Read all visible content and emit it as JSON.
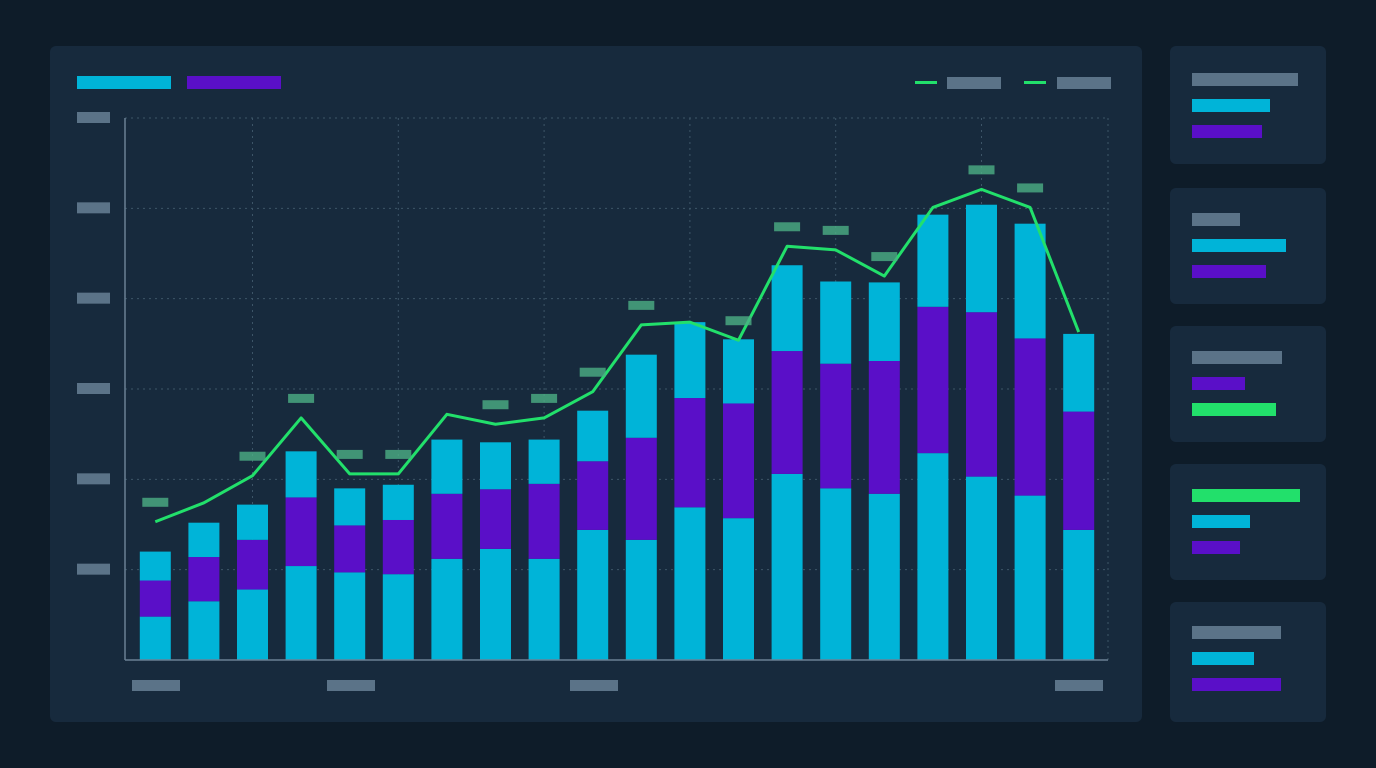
{
  "chart_data": {
    "type": "bar",
    "stacked": true,
    "categories": [
      null,
      null,
      null,
      null,
      null,
      null,
      null,
      null,
      null,
      null,
      null,
      null,
      null,
      null,
      null,
      null,
      null,
      null,
      null,
      null
    ],
    "series": [
      {
        "color": "#00b4d8",
        "values": [
          0.48,
          0.65,
          0.78,
          1.04,
          0.97,
          0.95,
          1.12,
          1.23,
          1.12,
          1.44,
          1.33,
          1.69,
          1.57,
          2.06,
          1.9,
          1.84,
          2.29,
          2.03,
          1.82,
          1.44
        ]
      },
      {
        "color": "#5a0fc8",
        "values": [
          0.4,
          0.49,
          0.55,
          0.76,
          0.52,
          0.6,
          0.72,
          0.66,
          0.83,
          0.76,
          1.13,
          1.21,
          1.27,
          1.36,
          1.38,
          1.47,
          1.62,
          1.82,
          1.74,
          1.31
        ]
      },
      {
        "color": "#00b4d8",
        "values": [
          0.32,
          0.38,
          0.39,
          0.51,
          0.41,
          0.39,
          0.6,
          0.52,
          0.49,
          0.56,
          0.92,
          0.84,
          0.71,
          0.95,
          0.91,
          0.87,
          1.02,
          1.19,
          1.27,
          0.86
        ]
      },
      {
        "type": "line",
        "color": "#22e06b",
        "values": [
          1.53,
          1.74,
          2.04,
          2.68,
          2.06,
          2.06,
          2.72,
          2.61,
          2.68,
          2.97,
          3.71,
          3.74,
          3.54,
          4.58,
          4.54,
          4.25,
          5.01,
          5.21,
          5.01,
          3.63
        ]
      }
    ],
    "ylim": [
      0,
      6
    ],
    "yticks": [
      0,
      1,
      2,
      3,
      4,
      5,
      6
    ],
    "grid": true
  }
}
